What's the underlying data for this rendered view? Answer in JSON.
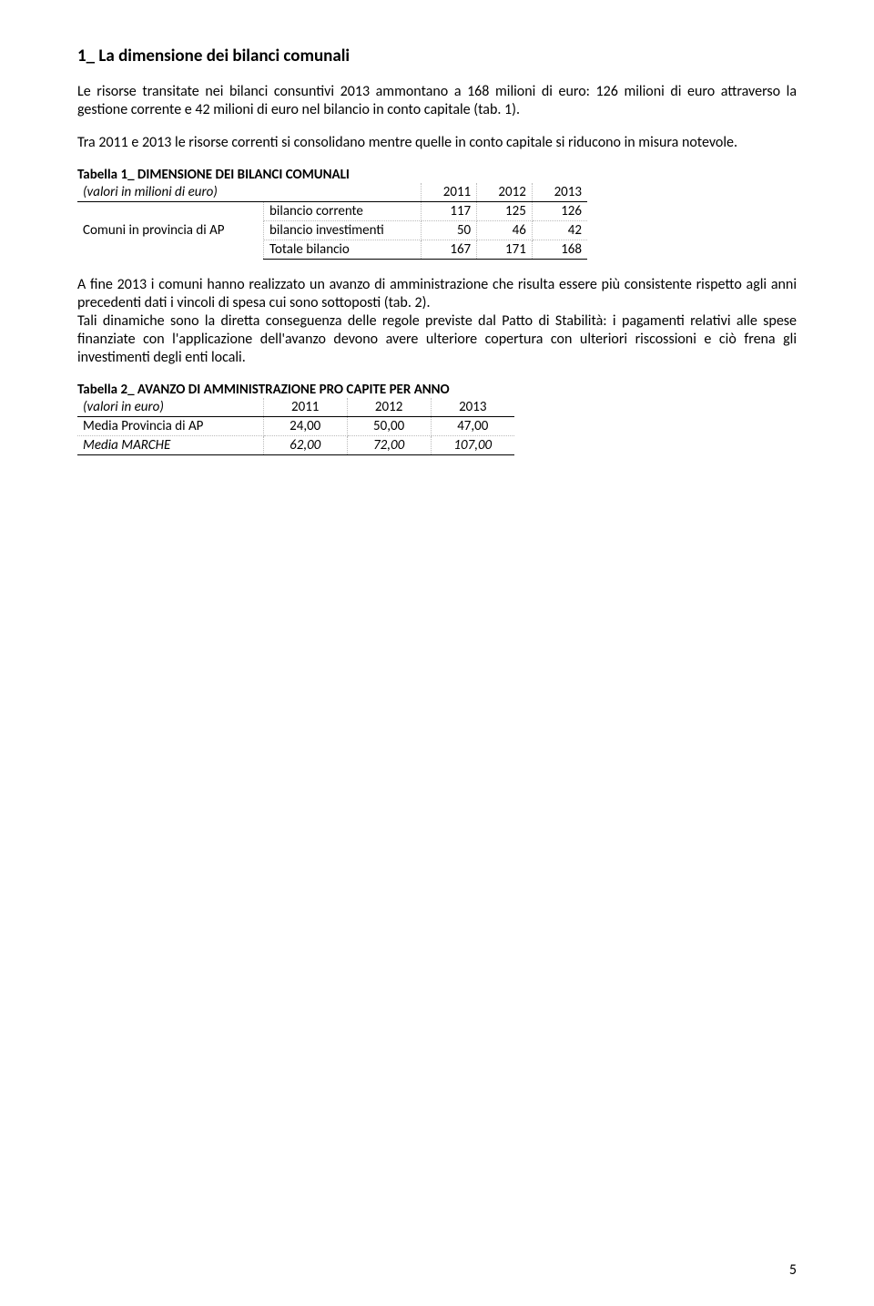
{
  "section": {
    "title": "1_ La dimensione dei bilanci comunali",
    "para1": "Le risorse transitate nei bilanci consuntivi 2013 ammontano a 168 milioni di euro: 126 milioni di euro attraverso la gestione corrente e 42 milioni di euro nel bilancio in conto capitale (tab. 1).",
    "para2": "Tra 2011 e 2013 le risorse correnti si consolidano mentre quelle in conto capitale si riducono in misura notevole.",
    "para3": "A fine 2013 i comuni hanno realizzato un avanzo di amministrazione che risulta essere più consistente rispetto agli anni precedenti dati i vincoli di spesa cui sono sottoposti (tab. 2).",
    "para4": "Tali dinamiche sono la diretta conseguenza delle regole previste dal Patto di Stabilità: i pagamenti relativi alle spese finanziate con l'applicazione dell'avanzo devono avere ulteriore copertura con ulteriori riscossioni e ciò frena gli investimenti degli enti locali."
  },
  "table1": {
    "title": "Tabella 1_ DIMENSIONE DEI BILANCI COMUNALI",
    "header_label": "(valori in milioni di euro)",
    "years": [
      "2011",
      "2012",
      "2013"
    ],
    "row_group_label": "Comuni in provincia di AP",
    "rows": [
      {
        "label": "bilancio corrente",
        "vals": [
          "117",
          "125",
          "126"
        ]
      },
      {
        "label": "bilancio investimenti",
        "vals": [
          "50",
          "46",
          "42"
        ]
      },
      {
        "label": "Totale bilancio",
        "vals": [
          "167",
          "171",
          "168"
        ]
      }
    ]
  },
  "table2": {
    "title": "Tabella 2_ AVANZO DI AMMINISTRAZIONE PRO CAPITE PER ANNO",
    "header_label": "(valori in euro)",
    "years": [
      "2011",
      "2012",
      "2013"
    ],
    "rows": [
      {
        "label": "Media Provincia di AP",
        "vals": [
          "24,00",
          "50,00",
          "47,00"
        ],
        "italic": false
      },
      {
        "label": "Media MARCHE",
        "vals": [
          "62,00",
          "72,00",
          "107,00"
        ],
        "italic": true
      }
    ]
  },
  "page_number": "5"
}
